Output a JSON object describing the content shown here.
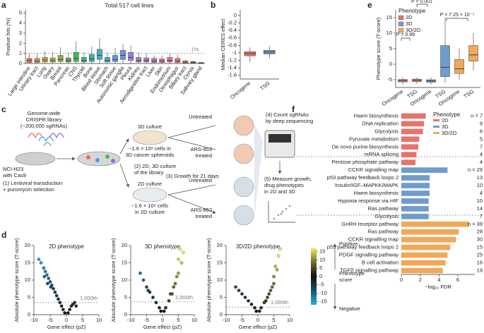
{
  "panels": [
    "a",
    "b",
    "c",
    "d",
    "e",
    "f"
  ],
  "chart_data": [
    {
      "type": "box",
      "title": "Total 517 cell lines",
      "ylabel": "Positive hits (%)",
      "ylim": [
        0,
        5.3
      ],
      "yticks": [
        0,
        1,
        2,
        3,
        4,
        5
      ],
      "reference": {
        "value": 1,
        "label": "1%"
      },
      "categories": [
        "Large intestine",
        "Urinary tract",
        "Lung",
        "Ovary",
        "Breast",
        "Pancreas",
        "CNS",
        "Thyroid",
        "Bone",
        "Blood tissue",
        "Stomach",
        "Soft tissue",
        "Autonomic ganglia",
        "Pleura",
        "Kidney",
        "Aerodigestive tract",
        "Liver",
        "Skin",
        "Endometrium",
        "Oesophagus",
        "Biliary tract",
        "Cervix",
        "Salivary gland"
      ],
      "series": [
        {
          "colors": [
            "#e8736c",
            "#e58a55",
            "#d89e3c",
            "#b8a72e",
            "#90b037",
            "#62b647",
            "#41b55f",
            "#3eb587",
            "#3db3a4",
            "#40b0c0",
            "#44aad6",
            "#4f9ee6",
            "#6f8fe8",
            "#9383e0",
            "#b078d6",
            "#c66fca",
            "#d96cb4",
            "#e56c9b",
            "#ea6f85",
            "#e8736c",
            "#e58a55",
            "#d89e3c",
            "#b8a72e"
          ],
          "boxes": [
            {
              "low": 0,
              "q1": 0.1,
              "median": 0.3,
              "q3": 0.5,
              "high": 1.0
            },
            {
              "low": 0,
              "q1": 0.1,
              "median": 0.25,
              "q3": 0.5,
              "high": 1.0
            },
            {
              "low": 0,
              "q1": 0.15,
              "median": 0.35,
              "q3": 0.6,
              "high": 1.2
            },
            {
              "low": 0,
              "q1": 0.15,
              "median": 0.3,
              "q3": 0.55,
              "high": 1.1
            },
            {
              "low": 0,
              "q1": 0.2,
              "median": 0.4,
              "q3": 0.8,
              "high": 1.6
            },
            {
              "low": 0,
              "q1": 0.15,
              "median": 0.3,
              "q3": 0.55,
              "high": 1.1
            },
            {
              "low": 0,
              "q1": 0.2,
              "median": 0.5,
              "q3": 1.1,
              "high": 2.2
            },
            {
              "low": 0,
              "q1": 0.15,
              "median": 0.3,
              "q3": 0.6,
              "high": 1.1
            },
            {
              "low": 0,
              "q1": 0.2,
              "median": 0.45,
              "q3": 0.9,
              "high": 1.7
            },
            {
              "low": 0,
              "q1": 0.4,
              "median": 0.8,
              "q3": 1.4,
              "high": 2.5
            },
            {
              "low": 0,
              "q1": 0.15,
              "median": 0.3,
              "q3": 0.6,
              "high": 1.1
            },
            {
              "low": 0,
              "q1": 0.2,
              "median": 0.4,
              "q3": 0.8,
              "high": 1.5
            },
            {
              "low": 0,
              "q1": 0.4,
              "median": 0.8,
              "q3": 1.3,
              "high": 1.9
            },
            {
              "low": 0,
              "q1": 0.3,
              "median": 0.6,
              "q3": 1.1,
              "high": 1.8
            },
            {
              "low": 0,
              "q1": 0.15,
              "median": 0.3,
              "q3": 0.6,
              "high": 1.1
            },
            {
              "low": 0,
              "q1": 0.15,
              "median": 0.3,
              "q3": 0.55,
              "high": 1.0
            },
            {
              "low": 0,
              "q1": 0.1,
              "median": 0.25,
              "q3": 0.5,
              "high": 0.8
            },
            {
              "low": 0,
              "q1": 0.1,
              "median": 0.25,
              "q3": 0.45,
              "high": 0.8
            },
            {
              "low": 0,
              "q1": 0.15,
              "median": 0.3,
              "q3": 0.6,
              "high": 1.0
            },
            {
              "low": 0,
              "q1": 0.1,
              "median": 0.25,
              "q3": 0.5,
              "high": 0.9
            },
            {
              "low": 0,
              "q1": 0.05,
              "median": 0.15,
              "q3": 0.25,
              "high": 0.4
            },
            {
              "low": 0,
              "q1": 0.05,
              "median": 0.1,
              "q3": 0.2,
              "high": 0.3
            },
            {
              "low": 0,
              "q1": 0.02,
              "median": 0.05,
              "q3": 0.1,
              "high": 0.15
            }
          ]
        }
      ]
    },
    {
      "type": "box",
      "ylabel": "Median CERES effect",
      "ylim": [
        -1.7,
        0.15
      ],
      "yticks": [
        0,
        -0.2,
        -0.4,
        -0.6,
        -0.8,
        -1,
        -1.2,
        -1.4,
        -1.6
      ],
      "categories": [
        "Oncogene",
        "TSG"
      ],
      "series": [
        {
          "colors": [
            "#e8736c",
            "#6e9ccd"
          ],
          "boxes": [
            {
              "low": -1.25,
              "q1": -1.08,
              "median": -1.02,
              "q3": -0.97,
              "high": -0.85
            },
            {
              "low": -1.15,
              "q1": -1.03,
              "median": -0.98,
              "q3": -0.93,
              "high": -0.82
            }
          ]
        }
      ]
    },
    {
      "type": "box",
      "ylabel": "Phenotype score (T-score)",
      "legend_title": "Phenotype",
      "legend": "upper left",
      "ylim": [
        -7.5,
        17.5
      ],
      "yticks": [
        -5,
        0,
        5,
        10,
        15
      ],
      "categories": [
        "Oncogene",
        "TSG"
      ],
      "annotations": [
        "P = 0.99",
        "P = 0.001",
        "P = 7.25 × 10⁻⁵"
      ],
      "series": [
        {
          "name": "2D",
          "color": "#e8736c",
          "boxes": [
            {
              "low": -6.5,
              "q1": -5.7,
              "median": -5.3,
              "q3": -4.9,
              "high": -4.2
            },
            {
              "low": -6.4,
              "q1": -5.6,
              "median": -5.2,
              "q3": -4.8,
              "high": -4.3
            }
          ]
        },
        {
          "name": "3D",
          "color": "#6e9ccd",
          "boxes": [
            {
              "low": -6.5,
              "q1": -5.8,
              "median": -5.4,
              "q3": -5.0,
              "high": -4.2
            },
            {
              "low": -6,
              "q1": -4,
              "median": -1,
              "q3": 6,
              "high": 15
            }
          ]
        },
        {
          "name": "3D/2D",
          "color": "#f0a95a",
          "boxes": [
            {
              "low": -5,
              "q1": -3,
              "median": -1.5,
              "q3": 1.5,
              "high": 5
            },
            {
              "low": -2,
              "q1": 1,
              "median": 3,
              "q3": 6,
              "high": 10
            }
          ]
        }
      ]
    },
    {
      "type": "hbar",
      "xlabel": "−log₁₀ FDR",
      "legend_title": "Phenotype",
      "legend": "upper right",
      "xlim": [
        0,
        7.8
      ],
      "xticks": [
        0,
        2,
        4,
        6
      ],
      "series": [
        {
          "name": "2D",
          "color": "#e8736c",
          "categories": [
            "Haem biosynthesis",
            "DNA replication",
            "Glycolysis",
            "Pyruvate metabolism",
            "De novo purine biosynthesis",
            "mRNA splicing",
            "Pentose phosphate pathway"
          ],
          "values": [
            2.6,
            2.4,
            2.3,
            1.9,
            1.8,
            1.6,
            1.5
          ],
          "n_labels": [
            "n = 7",
            "9",
            "6",
            "5",
            "7",
            "4",
            "4"
          ]
        },
        {
          "name": "3D",
          "color": "#6e9ccd",
          "categories": [
            "CCKR signalling map",
            "p53 pathway feedback loops 2",
            "Insulin/IGF–MAPKK/MAPK",
            "Haem biosynthesis",
            "Hypoxia response via HIF",
            "Ras pathway",
            "Glycolysis"
          ],
          "values": [
            4.9,
            3.0,
            3.0,
            3.0,
            2.9,
            2.9,
            2.9
          ],
          "n_labels": [
            "n = 29",
            "13",
            "10",
            "4",
            "10",
            "14",
            "7"
          ]
        },
        {
          "name": "3D/2D",
          "color": "#f0a95a",
          "categories": [
            "GnRH receptor pathway",
            "Ras pathway",
            "CCKR signalling map",
            "p53 pathway feedback loops 2",
            "PDGF signalling pathway",
            "B cell activation",
            "TGFβ signalling pathway"
          ],
          "values": [
            7.2,
            6.1,
            5.8,
            5.2,
            4.9,
            4.7,
            4.4
          ],
          "n_labels": [
            "n = 39",
            "28",
            "30",
            "15",
            "25",
            "16",
            "19"
          ]
        }
      ]
    },
    {
      "type": "scatter",
      "title": "2D phenotype",
      "xlabel": "Gene effect (pZ)",
      "ylabel": "Absolute phenotype score (T-score)",
      "xlim": [
        -10,
        10
      ],
      "ylim": [
        0,
        20
      ],
      "xticks": [
        -10,
        -5,
        0,
        5,
        10
      ],
      "yticks": [
        0,
        5,
        10,
        15,
        20
      ],
      "threshold": 3.5,
      "threshold_label": "1,000th",
      "x": [
        -8.5,
        -7.8,
        -7,
        -6.5,
        -6,
        -5.5,
        -5,
        -4.5,
        -4,
        -3.5,
        -3,
        -2.5,
        -2,
        -1.5,
        -1,
        -0.5,
        0.5,
        1,
        1.5,
        2,
        2.5,
        3,
        -6.8,
        -5.8,
        -4.8
      ],
      "values": [
        16,
        15,
        13.5,
        12.5,
        11.5,
        10.5,
        9.5,
        8.5,
        7.5,
        6.5,
        5.5,
        4.5,
        3.5,
        2.5,
        1.5,
        0.5,
        0.5,
        1.5,
        2.5,
        3,
        3.5,
        2.5,
        11,
        9,
        8
      ]
    },
    {
      "type": "scatter",
      "title": "3D phenotype",
      "xlabel": "Gene effect (pZ)",
      "ylabel": "Absolute phenotype score (T-score)",
      "xlim": [
        -10,
        10
      ],
      "ylim": [
        0,
        20
      ],
      "xticks": [
        -10,
        -5,
        0,
        5,
        10
      ],
      "yticks": [
        0,
        5,
        10,
        15,
        20
      ],
      "threshold": 3.7,
      "threshold_label": "1,000th",
      "x": [
        -7,
        -6,
        -5,
        -4,
        -3,
        -2,
        -1,
        -0.5,
        0.5,
        1,
        2,
        3,
        4,
        5,
        6,
        4.5,
        5.5,
        3.5,
        2.5,
        -4.5,
        6.5,
        5
      ],
      "values": [
        12,
        10,
        8,
        6.5,
        5,
        3.5,
        2,
        1,
        1,
        2,
        4,
        6,
        9,
        12,
        15,
        11,
        19,
        8,
        6,
        7,
        18,
        16
      ]
    },
    {
      "type": "scatter",
      "title": "3D/2D phenotype",
      "xlabel": "Gene effect (pZ)",
      "ylabel": "Absolute phenotype score (T-score)",
      "xlim": [
        -10,
        10
      ],
      "ylim": [
        0,
        20
      ],
      "xticks": [
        -10,
        -5,
        0,
        5,
        10
      ],
      "yticks": [
        0,
        5,
        10,
        15,
        20
      ],
      "threshold": 2.2,
      "threshold_label": "1,000th",
      "x": [
        -7,
        -6,
        -5,
        -4,
        -3,
        -2,
        -1,
        -0.5,
        0.5,
        1,
        2,
        3,
        4,
        5,
        6,
        4.5,
        5.5,
        3.5,
        2.5,
        6.5,
        7,
        5
      ],
      "values": [
        8,
        7,
        6,
        5,
        4,
        3,
        2,
        1,
        1,
        2,
        3.5,
        5,
        7,
        9,
        13,
        8,
        14,
        6,
        4,
        17,
        19,
        11
      ]
    },
    {
      "type": "colorbar",
      "title": [
        "Phenotype",
        "score"
      ],
      "top_label": "Positive",
      "bottom_label": "Negative",
      "lim": [
        -17,
        17
      ],
      "ticks": [
        15,
        10,
        5,
        0,
        -5,
        -10,
        -15
      ],
      "colors": [
        "#27b3d6",
        "#1d4f66",
        "#111111",
        "#6e6a2a",
        "#f3e65a"
      ]
    }
  ],
  "diagram": {
    "library": [
      "Genome-wide",
      "CRISPR library",
      "(~200,000 sgRNAs)"
    ],
    "cell_line": [
      "NCI-H23",
      "with Cas9"
    ],
    "step1": [
      "(1) Lentiviral transduction",
      "+ puromycin selection"
    ],
    "culture_3d": "3D culture",
    "cells_3d": [
      "~1.6 × 10⁸ cells in",
      "3D cancer spheroids"
    ],
    "step2": [
      "(2) 2D, 3D culture",
      "of the library"
    ],
    "culture_2d": "2D culture",
    "cells_2d": [
      "~1.6 × 10⁸ cells",
      "in 2D culture"
    ],
    "step3": "(3) Growth for 21 days",
    "untreated_3d": "Untreated",
    "treated_3d": [
      "ARS-853",
      "treated"
    ],
    "untreated_2d": "Untreated",
    "treated_2d": [
      "ARS-853",
      "treated"
    ],
    "step4": [
      "(4) Count sgRNAs",
      "by deep sequencing"
    ],
    "step5": [
      "(5) Measure growth,",
      "drug phenotypes",
      "in 2D and 3D"
    ]
  }
}
